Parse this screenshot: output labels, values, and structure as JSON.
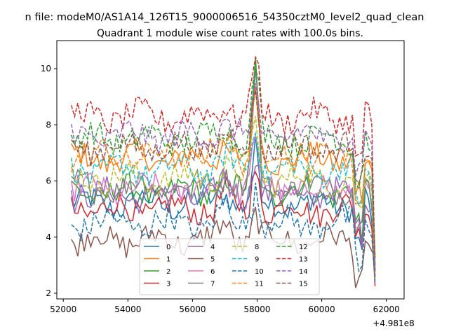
{
  "chart_data": {
    "type": "line",
    "suptitle": "n file: modeM0/AS1A14_126T15_9000006516_54350cztM0_level2_quad_clean",
    "title": "Quadrant 1 module wise count rates with 100.0s bins.",
    "xlabel": "",
    "ylabel": "",
    "x_offset_label": "+4.981e8",
    "xlim": [
      51800,
      62550
    ],
    "ylim": [
      1.8,
      11.0
    ],
    "x_ticks": [
      52000,
      54000,
      56000,
      58000,
      60000,
      62000
    ],
    "y_ticks": [
      2,
      4,
      6,
      8,
      10
    ],
    "x_start": 52250,
    "x_step": 100,
    "num_points": 95,
    "grid": false,
    "legend_position": "lower-center",
    "legend_columns": 4,
    "series": [
      {
        "name": "0",
        "color": "#1f77b4",
        "style": "solid",
        "base": 5.2,
        "peak": 1.8,
        "end": 4.5
      },
      {
        "name": "1",
        "color": "#ff7f0e",
        "style": "solid",
        "base": 6.8,
        "peak": 2.5,
        "end": 6.4
      },
      {
        "name": "2",
        "color": "#2ca02c",
        "style": "solid",
        "base": 5.6,
        "peak": 4.6,
        "end": 5.1
      },
      {
        "name": "3",
        "color": "#d62728",
        "style": "solid",
        "base": 5.0,
        "peak": 1.6,
        "end": 4.3
      },
      {
        "name": "4",
        "color": "#9467bd",
        "style": "solid",
        "base": 5.5,
        "peak": 1.7,
        "end": 5.0
      },
      {
        "name": "5",
        "color": "#8c564b",
        "style": "solid",
        "base": 3.9,
        "peak": 1.0,
        "end": 3.5
      },
      {
        "name": "6",
        "color": "#e377c2",
        "style": "solid",
        "base": 5.7,
        "peak": 1.9,
        "end": 5.9
      },
      {
        "name": "7",
        "color": "#7f7f7f",
        "style": "solid",
        "base": 5.8,
        "peak": 3.9,
        "end": 5.0
      },
      {
        "name": "8",
        "color": "#bcbd22",
        "style": "dashed",
        "base": 6.1,
        "peak": 2.0,
        "end": 5.6
      },
      {
        "name": "9",
        "color": "#17becf",
        "style": "dashed",
        "base": 6.4,
        "peak": 1.8,
        "end": 6.0
      },
      {
        "name": "10",
        "color": "#1f77b4",
        "style": "dashed",
        "base": 4.5,
        "peak": 1.3,
        "end": 4.0
      },
      {
        "name": "11",
        "color": "#ff7f0e",
        "style": "dashed",
        "base": 6.9,
        "peak": 2.1,
        "end": 6.6
      },
      {
        "name": "12",
        "color": "#2ca02c",
        "style": "dashed",
        "base": 7.5,
        "peak": 2.6,
        "end": 7.0
      },
      {
        "name": "13",
        "color": "#d62728",
        "style": "dashed",
        "base": 8.3,
        "peak": 2.2,
        "end": 8.0
      },
      {
        "name": "14",
        "color": "#9467bd",
        "style": "dashed",
        "base": 7.6,
        "peak": 1.6,
        "end": 7.3
      },
      {
        "name": "15",
        "color": "#8c564b",
        "style": "dashed",
        "base": 7.2,
        "peak": 1.9,
        "end": 6.8
      }
    ]
  }
}
